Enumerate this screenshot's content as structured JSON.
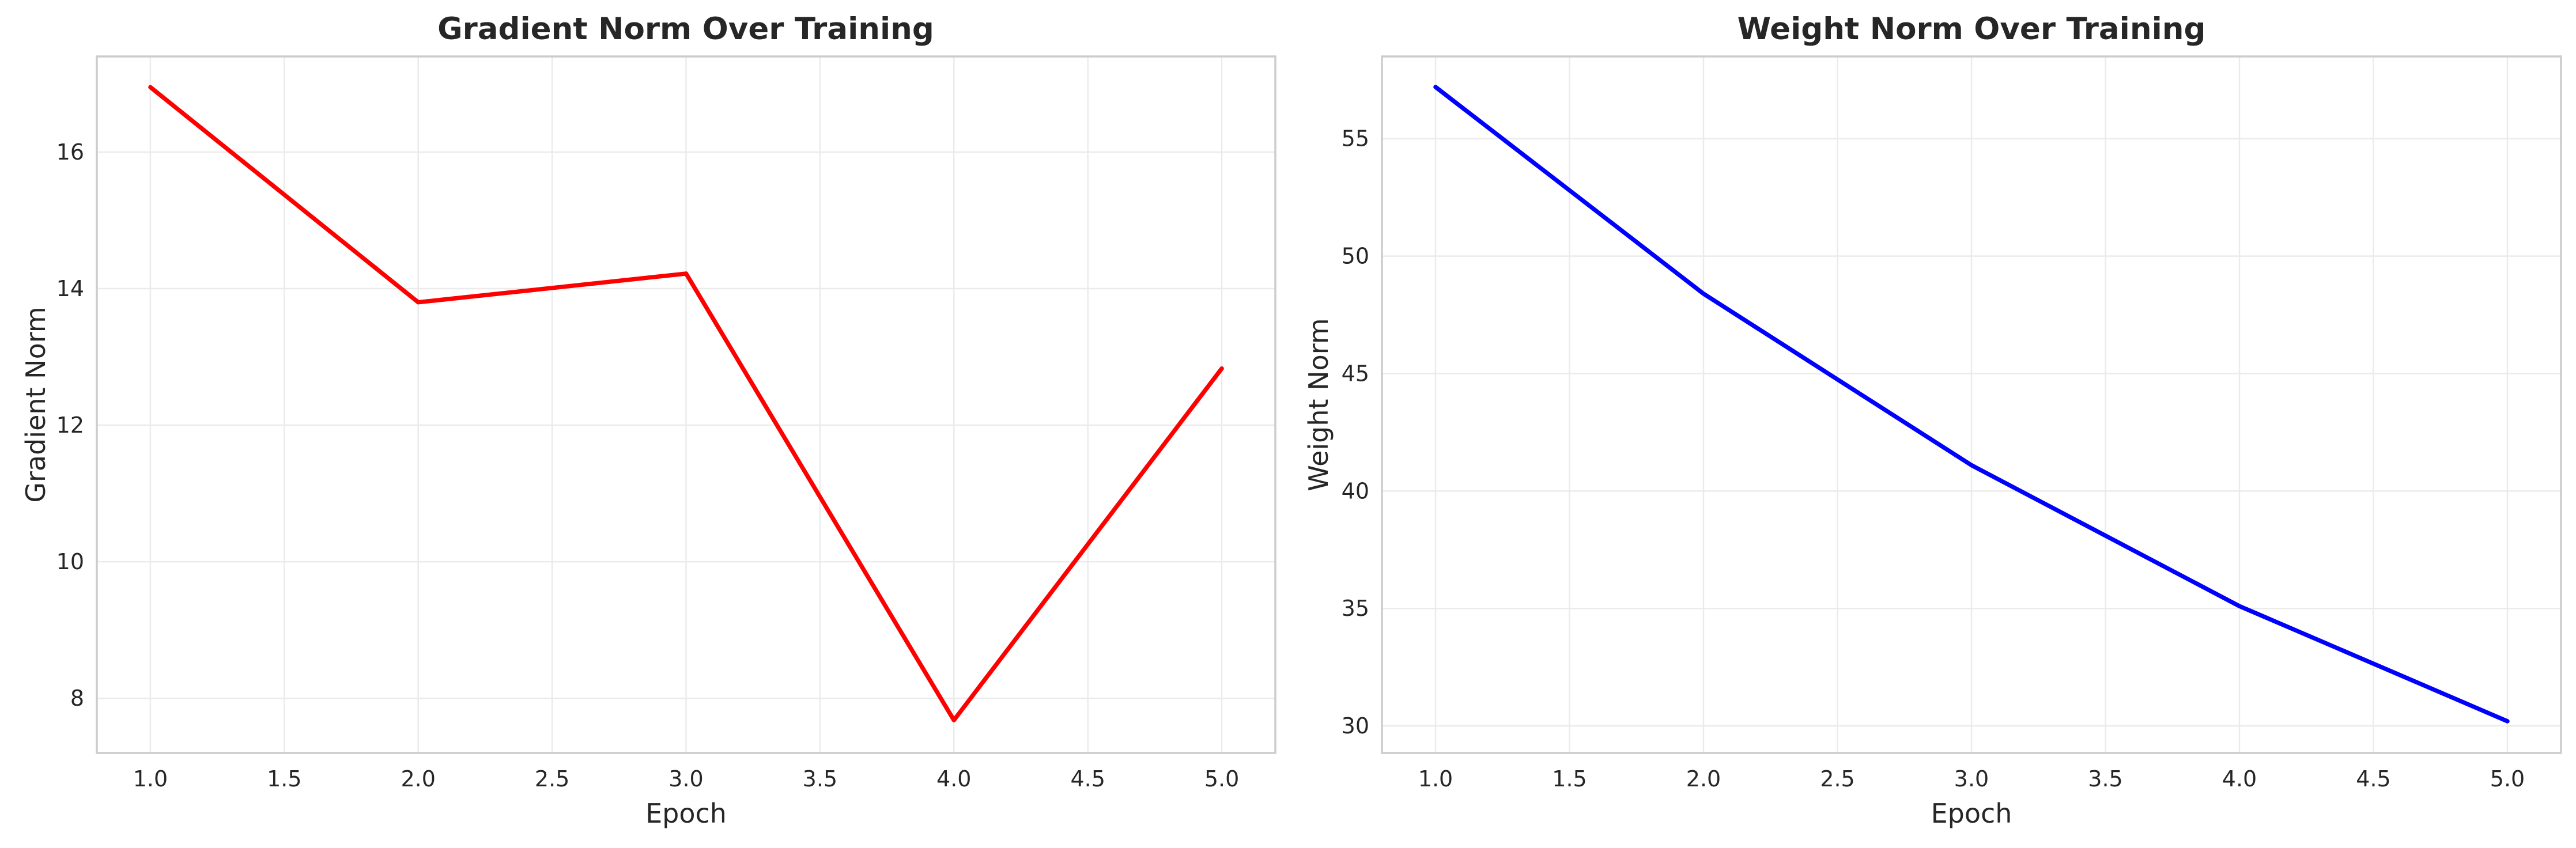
{
  "chart_data": [
    {
      "type": "line",
      "title": "Gradient Norm Over Training",
      "xlabel": "Epoch",
      "ylabel": "Gradient Norm",
      "x": [
        1.0,
        2.0,
        3.0,
        4.0,
        5.0
      ],
      "series": [
        {
          "values": [
            16.95,
            13.8,
            14.22,
            7.68,
            12.83
          ],
          "color": "#ff0000"
        }
      ],
      "xlim": [
        0.8,
        5.2
      ],
      "ylim": [
        7.2,
        17.4
      ],
      "xticks": [
        "1.0",
        "1.5",
        "2.0",
        "2.5",
        "3.0",
        "3.5",
        "4.0",
        "4.5",
        "5.0"
      ],
      "yticks": [
        "8",
        "10",
        "12",
        "14",
        "16"
      ],
      "grid": true
    },
    {
      "type": "line",
      "title": "Weight Norm Over Training",
      "xlabel": "Epoch",
      "ylabel": "Weight Norm",
      "x": [
        1.0,
        2.0,
        3.0,
        4.0,
        5.0
      ],
      "series": [
        {
          "values": [
            57.2,
            48.4,
            41.1,
            35.1,
            30.2
          ],
          "color": "#0000ff"
        }
      ],
      "xlim": [
        0.8,
        5.2
      ],
      "ylim": [
        28.85,
        58.5
      ],
      "xticks": [
        "1.0",
        "1.5",
        "2.0",
        "2.5",
        "3.0",
        "3.5",
        "4.0",
        "4.5",
        "5.0"
      ],
      "yticks": [
        "30",
        "35",
        "40",
        "45",
        "50",
        "55"
      ],
      "grid": true
    }
  ]
}
